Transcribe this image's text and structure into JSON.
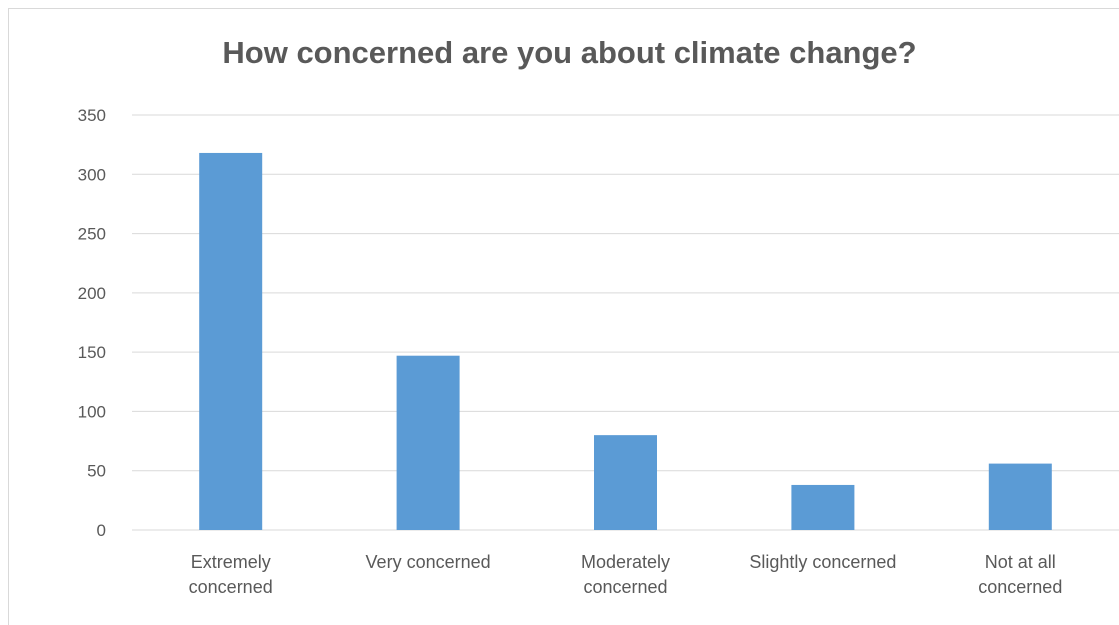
{
  "colors": {
    "bar": "#5b9bd5",
    "grid": "#d9d9d9",
    "text": "#595959",
    "title": "#595959"
  },
  "chart_data": {
    "type": "bar",
    "title": "How concerned are you about climate change?",
    "xlabel": "",
    "ylabel": "",
    "categories": [
      [
        "Extremely",
        "concerned"
      ],
      [
        "Very concerned"
      ],
      [
        "Moderately",
        "concerned"
      ],
      [
        "Slightly concerned"
      ],
      [
        "Not at all",
        "concerned"
      ]
    ],
    "series": [
      {
        "values": [
          318,
          147,
          80,
          38,
          56
        ]
      }
    ],
    "ylim": [
      0,
      350
    ],
    "yticks": [
      0,
      50,
      100,
      150,
      200,
      250,
      300,
      350
    ],
    "grid": true,
    "legend": "none"
  }
}
